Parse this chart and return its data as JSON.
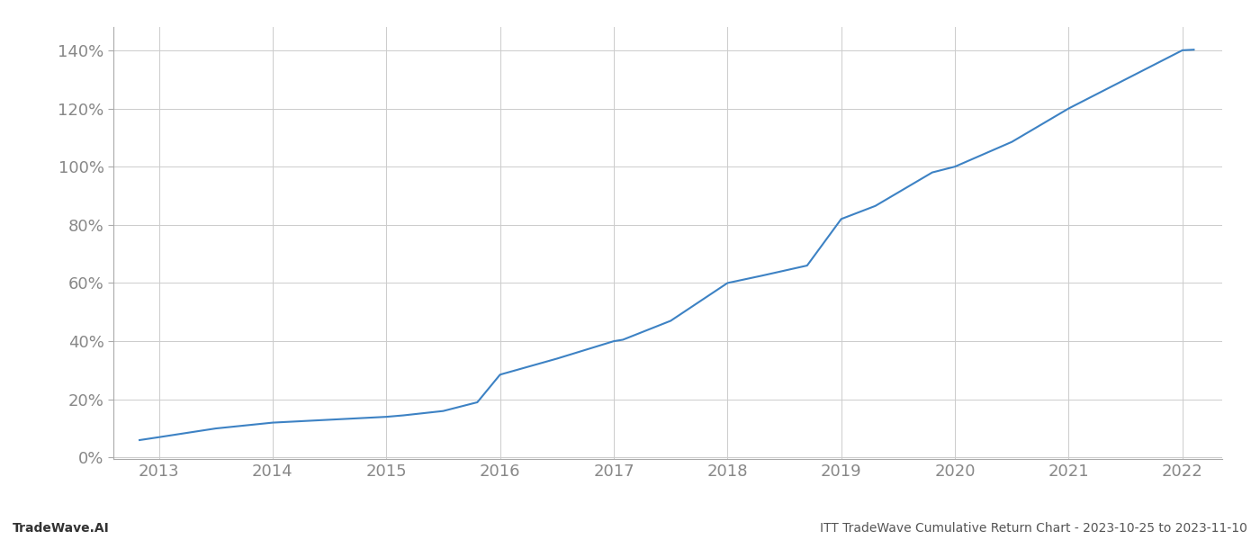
{
  "x_values": [
    2012.83,
    2013.0,
    2013.5,
    2014.0,
    2014.5,
    2015.0,
    2015.15,
    2015.5,
    2015.8,
    2016.0,
    2016.5,
    2017.0,
    2017.08,
    2017.5,
    2018.0,
    2018.3,
    2018.7,
    2019.0,
    2019.3,
    2019.8,
    2020.0,
    2020.5,
    2021.0,
    2021.5,
    2022.0,
    2022.1
  ],
  "y_values": [
    0.06,
    0.07,
    0.1,
    0.12,
    0.13,
    0.14,
    0.145,
    0.16,
    0.19,
    0.285,
    0.34,
    0.4,
    0.405,
    0.47,
    0.6,
    0.625,
    0.66,
    0.82,
    0.865,
    0.98,
    1.0,
    1.085,
    1.2,
    1.3,
    1.4,
    1.402
  ],
  "line_color": "#3d82c4",
  "line_width": 1.5,
  "background_color": "#ffffff",
  "grid_color": "#cccccc",
  "yticks": [
    0.0,
    0.2,
    0.4,
    0.6,
    0.8,
    1.0,
    1.2,
    1.4
  ],
  "ytick_labels": [
    "0%",
    "20%",
    "40%",
    "60%",
    "80%",
    "100%",
    "120%",
    "140%"
  ],
  "ylim": [
    -0.005,
    1.48
  ],
  "xlim": [
    2012.6,
    2022.35
  ],
  "xlabel_years": [
    2013,
    2014,
    2015,
    2016,
    2017,
    2018,
    2019,
    2020,
    2021,
    2022
  ],
  "footer_left": "TradeWave.AI",
  "footer_right": "ITT TradeWave Cumulative Return Chart - 2023-10-25 to 2023-11-10",
  "tick_color": "#888888",
  "spine_color": "#aaaaaa",
  "footer_fontsize": 10,
  "tick_fontsize": 13
}
